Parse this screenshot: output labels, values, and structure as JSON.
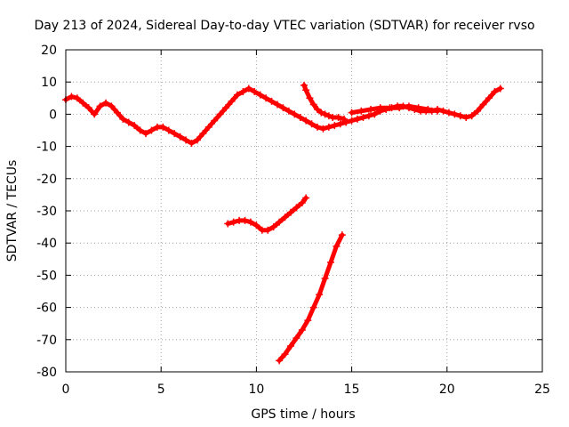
{
  "chart_data": {
    "type": "scatter",
    "title": "Day 213 of 2024, Sidereal Day-to-day VTEC variation (SDTVAR) for receiver rvso",
    "xlabel": "GPS time / hours",
    "ylabel": "SDTVAR / TECUs",
    "xlim": [
      0,
      25
    ],
    "ylim": [
      -80,
      20
    ],
    "x_ticks": [
      0,
      5,
      10,
      15,
      20,
      25
    ],
    "y_ticks": [
      -80,
      -70,
      -60,
      -50,
      -40,
      -30,
      -20,
      -10,
      0,
      10,
      20
    ],
    "grid": true,
    "marker": "plus",
    "series_color": "#ff0000",
    "series": [
      {
        "name": "main-track",
        "points": [
          [
            0.0,
            4.5
          ],
          [
            0.3,
            5.5
          ],
          [
            0.6,
            5.0
          ],
          [
            0.9,
            3.5
          ],
          [
            1.2,
            2.0
          ],
          [
            1.5,
            0.0
          ],
          [
            1.8,
            2.5
          ],
          [
            2.1,
            3.5
          ],
          [
            2.4,
            2.5
          ],
          [
            2.7,
            0.5
          ],
          [
            3.0,
            -1.5
          ],
          [
            3.3,
            -2.5
          ],
          [
            3.6,
            -3.5
          ],
          [
            3.9,
            -5.0
          ],
          [
            4.2,
            -6.0
          ],
          [
            4.5,
            -5.0
          ],
          [
            4.8,
            -4.0
          ],
          [
            5.1,
            -4.0
          ],
          [
            5.4,
            -5.0
          ],
          [
            5.7,
            -6.0
          ],
          [
            6.0,
            -7.0
          ],
          [
            6.3,
            -8.0
          ],
          [
            6.6,
            -9.0
          ],
          [
            6.9,
            -8.0
          ],
          [
            7.2,
            -6.0
          ],
          [
            7.5,
            -4.0
          ],
          [
            7.8,
            -2.0
          ],
          [
            8.1,
            0.0
          ],
          [
            8.4,
            2.0
          ],
          [
            8.7,
            4.0
          ],
          [
            9.0,
            6.0
          ],
          [
            9.3,
            7.0
          ],
          [
            9.6,
            8.0
          ],
          [
            9.9,
            7.0
          ],
          [
            10.2,
            6.0
          ],
          [
            10.5,
            5.0
          ],
          [
            10.8,
            4.0
          ],
          [
            11.1,
            3.0
          ],
          [
            11.4,
            2.0
          ],
          [
            11.7,
            1.0
          ],
          [
            12.0,
            0.0
          ],
          [
            12.3,
            -1.0
          ],
          [
            12.6,
            -2.0
          ],
          [
            12.9,
            -3.0
          ],
          [
            13.2,
            -4.0
          ],
          [
            13.5,
            -4.5
          ],
          [
            13.8,
            -4.0
          ],
          [
            14.1,
            -3.5
          ],
          [
            14.4,
            -3.0
          ],
          [
            14.7,
            -2.5
          ],
          [
            15.0,
            -2.0
          ],
          [
            15.3,
            -1.5
          ],
          [
            15.6,
            -1.0
          ],
          [
            15.9,
            -0.5
          ],
          [
            16.2,
            0.0
          ],
          [
            16.5,
            1.0
          ],
          [
            16.8,
            1.5
          ],
          [
            17.1,
            2.0
          ],
          [
            17.4,
            2.5
          ],
          [
            17.7,
            2.5
          ],
          [
            18.0,
            2.0
          ],
          [
            18.3,
            1.5
          ],
          [
            18.6,
            1.0
          ],
          [
            18.9,
            1.0
          ],
          [
            19.2,
            1.0
          ],
          [
            19.5,
            1.5
          ],
          [
            19.8,
            1.0
          ],
          [
            20.1,
            0.5
          ],
          [
            20.4,
            0.0
          ],
          [
            20.7,
            -0.5
          ],
          [
            21.0,
            -1.0
          ],
          [
            21.3,
            -0.5
          ],
          [
            21.6,
            1.0
          ],
          [
            21.9,
            3.0
          ],
          [
            22.2,
            5.0
          ],
          [
            22.5,
            7.0
          ],
          [
            22.8,
            8.0
          ]
        ]
      },
      {
        "name": "descending-branch",
        "points": [
          [
            12.5,
            9.0
          ],
          [
            12.6,
            7.5
          ],
          [
            12.8,
            5.0
          ],
          [
            13.0,
            3.0
          ],
          [
            13.2,
            1.5
          ],
          [
            13.4,
            0.5
          ],
          [
            13.6,
            0.0
          ],
          [
            13.8,
            -0.5
          ],
          [
            14.0,
            -1.0
          ],
          [
            14.3,
            -1.0
          ],
          [
            14.6,
            -1.5
          ]
        ]
      },
      {
        "name": "parallel-branch",
        "points": [
          [
            15.0,
            0.5
          ],
          [
            15.5,
            1.0
          ],
          [
            16.0,
            1.5
          ],
          [
            16.5,
            2.0
          ],
          [
            17.0,
            2.0
          ],
          [
            17.5,
            2.0
          ],
          [
            18.0,
            2.5
          ],
          [
            18.5,
            2.0
          ],
          [
            19.0,
            1.5
          ],
          [
            19.5,
            1.0
          ]
        ]
      },
      {
        "name": "lower-arc",
        "points": [
          [
            8.5,
            -34.0
          ],
          [
            8.8,
            -33.5
          ],
          [
            9.1,
            -33.0
          ],
          [
            9.4,
            -33.0
          ],
          [
            9.7,
            -33.5
          ],
          [
            10.0,
            -34.5
          ],
          [
            10.3,
            -36.0
          ],
          [
            10.6,
            -36.0
          ],
          [
            10.9,
            -35.0
          ],
          [
            11.2,
            -33.5
          ],
          [
            11.5,
            -32.0
          ],
          [
            11.8,
            -30.5
          ],
          [
            12.1,
            -29.0
          ],
          [
            12.4,
            -27.5
          ],
          [
            12.6,
            -26.0
          ]
        ]
      },
      {
        "name": "steep-line",
        "points": [
          [
            11.2,
            -76.5
          ],
          [
            11.5,
            -74.5
          ],
          [
            11.8,
            -72.0
          ],
          [
            12.1,
            -69.5
          ],
          [
            12.4,
            -67.0
          ],
          [
            12.7,
            -64.0
          ],
          [
            13.0,
            -60.0
          ],
          [
            13.3,
            -56.0
          ],
          [
            13.6,
            -51.0
          ],
          [
            13.9,
            -46.0
          ],
          [
            14.2,
            -41.0
          ],
          [
            14.5,
            -37.5
          ]
        ]
      }
    ]
  }
}
